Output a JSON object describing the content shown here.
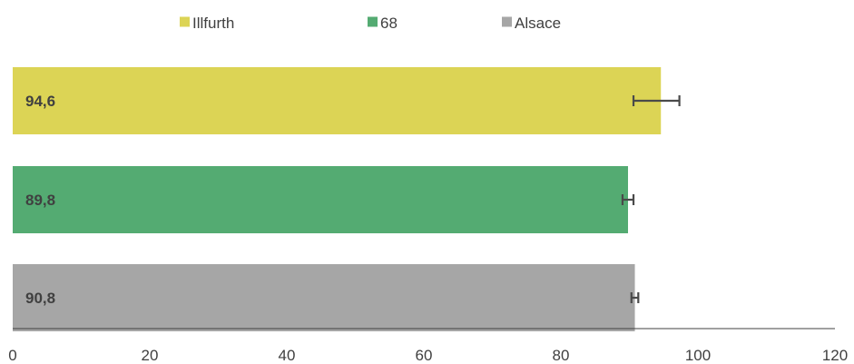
{
  "chart_data": {
    "type": "bar",
    "orientation": "horizontal",
    "categories": [
      "Illfurth",
      "68",
      "Alsace"
    ],
    "values": [
      94.6,
      89.8,
      90.8
    ],
    "value_labels": [
      "94,6",
      "89,8",
      "90,8"
    ],
    "error_bars": [
      {
        "low": 90.6,
        "high": 97.3
      },
      {
        "low": 89.0,
        "high": 90.6
      },
      {
        "low": 90.3,
        "high": 91.3
      }
    ],
    "series": [
      {
        "name": "Illfurth",
        "color": "#dcd455"
      },
      {
        "name": "68",
        "color": "#54ab72"
      },
      {
        "name": "Alsace",
        "color": "#a6a6a6"
      }
    ],
    "xlim": [
      0,
      120
    ],
    "xticks": [
      0,
      20,
      40,
      60,
      80,
      100,
      120
    ],
    "grid": false,
    "legend_position": "top-center",
    "title": "",
    "xlabel": "",
    "ylabel": "",
    "axis_color": "#404040",
    "error_bar_color": "#4a4a4a"
  }
}
